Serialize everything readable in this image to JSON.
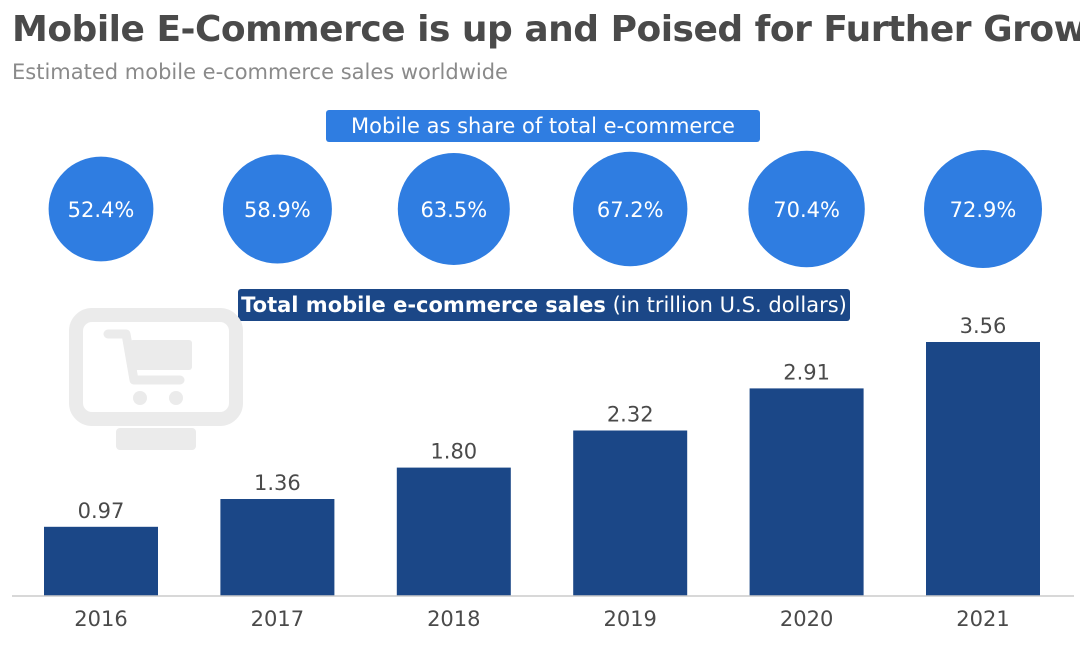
{
  "header": {
    "title": "Mobile E-Commerce is up and Poised for Further Growth",
    "subtitle": "Estimated mobile e-commerce sales worldwide"
  },
  "share_label": "Mobile as share of total e-commerce",
  "sales_label": {
    "bold": "Total mobile e-commerce sales",
    "rest": " (in trillion U.S. dollars)"
  },
  "colors": {
    "circle": "#2f7de1",
    "bar": "#1b4787",
    "text": "#4a4a4a",
    "axis": "#cccccc",
    "icon": "#ebebeb"
  },
  "decoration": {
    "icon": "shopping-cart-monitor-icon"
  },
  "chart_data": [
    {
      "type": "bubble-row",
      "categories": [
        "2016",
        "2017",
        "2018",
        "2019",
        "2020",
        "2021"
      ],
      "values": [
        52.4,
        58.9,
        63.5,
        67.2,
        70.4,
        72.9
      ],
      "labels": [
        "52.4%",
        "58.9%",
        "63.5%",
        "67.2%",
        "70.4%",
        "72.9%"
      ],
      "unit": "%"
    },
    {
      "type": "bar",
      "categories": [
        "2016",
        "2017",
        "2018",
        "2019",
        "2020",
        "2021"
      ],
      "values": [
        0.97,
        1.36,
        1.8,
        2.32,
        2.91,
        3.56
      ],
      "labels": [
        "0.97",
        "1.36",
        "1.80",
        "2.32",
        "2.91",
        "3.56"
      ],
      "ylim": [
        0,
        3.56
      ],
      "grid": false,
      "legend": "none"
    }
  ]
}
